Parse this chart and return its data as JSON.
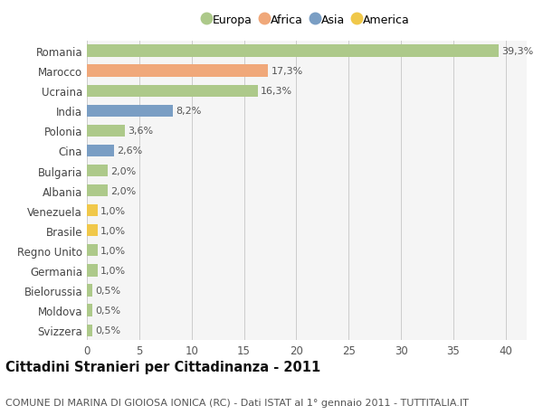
{
  "countries": [
    "Romania",
    "Marocco",
    "Ucraina",
    "India",
    "Polonia",
    "Cina",
    "Bulgaria",
    "Albania",
    "Venezuela",
    "Brasile",
    "Regno Unito",
    "Germania",
    "Bielorussia",
    "Moldova",
    "Svizzera"
  ],
  "values": [
    39.3,
    17.3,
    16.3,
    8.2,
    3.6,
    2.6,
    2.0,
    2.0,
    1.0,
    1.0,
    1.0,
    1.0,
    0.5,
    0.5,
    0.5
  ],
  "labels": [
    "39,3%",
    "17,3%",
    "16,3%",
    "8,2%",
    "3,6%",
    "2,6%",
    "2,0%",
    "2,0%",
    "1,0%",
    "1,0%",
    "1,0%",
    "1,0%",
    "0,5%",
    "0,5%",
    "0,5%"
  ],
  "categories": [
    "Europa",
    "Africa",
    "Europa",
    "Asia",
    "Europa",
    "Asia",
    "Europa",
    "Europa",
    "America",
    "America",
    "Europa",
    "Europa",
    "Europa",
    "Europa",
    "Europa"
  ],
  "colors": {
    "Europa": "#adc98a",
    "Africa": "#f0a87a",
    "Asia": "#7a9ec4",
    "America": "#f0c84a"
  },
  "legend_order": [
    "Europa",
    "Africa",
    "Asia",
    "America"
  ],
  "title": "Cittadini Stranieri per Cittadinanza - 2011",
  "subtitle": "COMUNE DI MARINA DI GIOIOSA IONICA (RC) - Dati ISTAT al 1° gennaio 2011 - TUTTITALIA.IT",
  "xlim": [
    0,
    42
  ],
  "xticks": [
    0,
    5,
    10,
    15,
    20,
    25,
    30,
    35,
    40
  ],
  "bg_color": "#ffffff",
  "plot_bg_color": "#f5f5f5",
  "grid_color": "#cccccc",
  "bar_height": 0.6,
  "title_fontsize": 10.5,
  "subtitle_fontsize": 8,
  "tick_fontsize": 8.5,
  "label_fontsize": 8,
  "legend_fontsize": 9
}
